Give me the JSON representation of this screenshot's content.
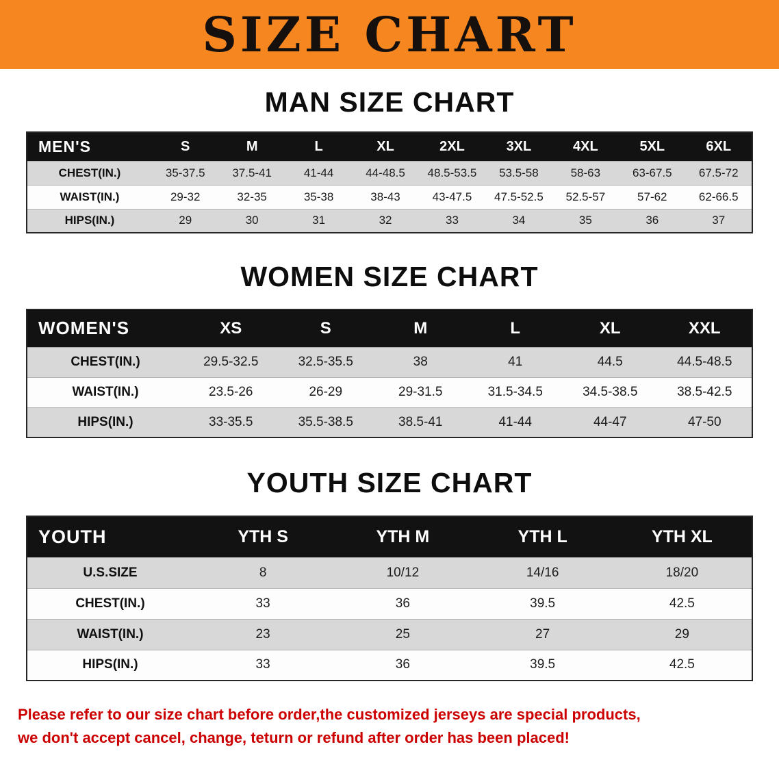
{
  "banner": {
    "title": "SIZE CHART",
    "bg_color": "#F6861F",
    "text_color": "#15100e"
  },
  "chart_data": [
    {
      "type": "table",
      "title": "MAN SIZE CHART",
      "header": [
        "MEN'S",
        "S",
        "M",
        "L",
        "XL",
        "2XL",
        "3XL",
        "4XL",
        "5XL",
        "6XL"
      ],
      "rows": [
        [
          "CHEST(IN.)",
          "35-37.5",
          "37.5-41",
          "41-44",
          "44-48.5",
          "48.5-53.5",
          "53.5-58",
          "58-63",
          "63-67.5",
          "67.5-72"
        ],
        [
          "WAIST(IN.)",
          "29-32",
          "32-35",
          "35-38",
          "38-43",
          "43-47.5",
          "47.5-52.5",
          "52.5-57",
          "57-62",
          "62-66.5"
        ],
        [
          "HIPS(IN.)",
          "29",
          "30",
          "31",
          "32",
          "33",
          "34",
          "35",
          "36",
          "37"
        ]
      ]
    },
    {
      "type": "table",
      "title": "WOMEN SIZE CHART",
      "header": [
        "WOMEN'S",
        "XS",
        "S",
        "M",
        "L",
        "XL",
        "XXL"
      ],
      "rows": [
        [
          "CHEST(IN.)",
          "29.5-32.5",
          "32.5-35.5",
          "38",
          "41",
          "44.5",
          "44.5-48.5"
        ],
        [
          "WAIST(IN.)",
          "23.5-26",
          "26-29",
          "29-31.5",
          "31.5-34.5",
          "34.5-38.5",
          "38.5-42.5"
        ],
        [
          "HIPS(IN.)",
          "33-35.5",
          "35.5-38.5",
          "38.5-41",
          "41-44",
          "44-47",
          "47-50"
        ]
      ]
    },
    {
      "type": "table",
      "title": "YOUTH SIZE CHART",
      "header": [
        "YOUTH",
        "YTH S",
        "YTH M",
        "YTH L",
        "YTH XL"
      ],
      "rows": [
        [
          "U.S.SIZE",
          "8",
          "10/12",
          "14/16",
          "18/20"
        ],
        [
          "CHEST(IN.)",
          "33",
          "36",
          "39.5",
          "42.5"
        ],
        [
          "WAIST(IN.)",
          "23",
          "25",
          "27",
          "29"
        ],
        [
          "HIPS(IN.)",
          "33",
          "36",
          "39.5",
          "42.5"
        ]
      ]
    }
  ],
  "disclaimer": {
    "line1": "Please refer to our size chart before order,the customized jerseys are special products,",
    "line2": "we don't accept cancel, change, teturn or refund after order has been placed!",
    "text_color": "#CC0000"
  }
}
